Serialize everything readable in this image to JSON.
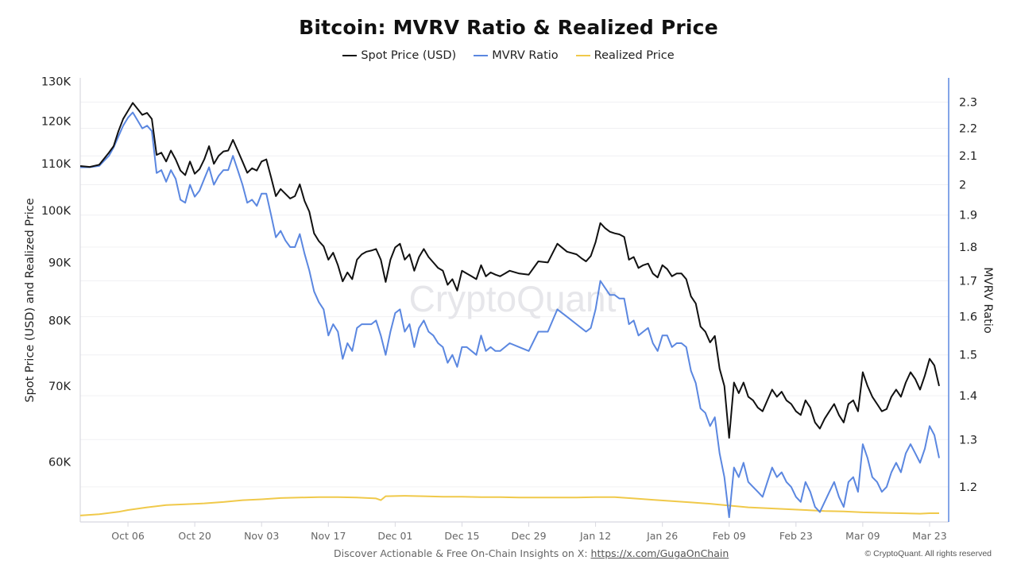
{
  "chart_data": {
    "type": "line",
    "title": "Bitcoin: MVRV Ratio & Realized Price",
    "legend_position": "top-center",
    "legend": [
      {
        "name": "Spot Price (USD)",
        "color": "#111111"
      },
      {
        "name": "MVRV Ratio",
        "color": "#5b87e0"
      },
      {
        "name": "Realized Price",
        "color": "#f0c94a"
      }
    ],
    "ylabel_left": "Spot Price (USD) and Realized Price",
    "ylabel_right": "MVRV Ratio",
    "y_left_scale": "log",
    "y_left_range": [
      53100,
      131000
    ],
    "y_left_ticks": [
      {
        "value": 60000,
        "label": "60K"
      },
      {
        "value": 70000,
        "label": "70K"
      },
      {
        "value": 80000,
        "label": "80K"
      },
      {
        "value": 90000,
        "label": "90K"
      },
      {
        "value": 100000,
        "label": "100K"
      },
      {
        "value": 110000,
        "label": "110K"
      },
      {
        "value": 120000,
        "label": "120K"
      },
      {
        "value": 130000,
        "label": "130K"
      }
    ],
    "y_right_scale": "log",
    "y_right_range": [
      1.131,
      2.396
    ],
    "y_right_ticks": [
      {
        "value": 1.2,
        "label": "1.2"
      },
      {
        "value": 1.3,
        "label": "1.3"
      },
      {
        "value": 1.4,
        "label": "1.4"
      },
      {
        "value": 1.5,
        "label": "1.5"
      },
      {
        "value": 1.6,
        "label": "1.6"
      },
      {
        "value": 1.7,
        "label": "1.7"
      },
      {
        "value": 1.8,
        "label": "1.8"
      },
      {
        "value": 1.9,
        "label": "1.9"
      },
      {
        "value": 2.0,
        "label": "2"
      },
      {
        "value": 2.1,
        "label": "2.1"
      },
      {
        "value": 2.2,
        "label": "2.2"
      },
      {
        "value": 2.3,
        "label": "2.3"
      }
    ],
    "x_range_days": [
      -10,
      172
    ],
    "x_ticks": [
      {
        "day": 0,
        "label": "Oct 06"
      },
      {
        "day": 14,
        "label": "Oct 20"
      },
      {
        "day": 28,
        "label": "Nov 03"
      },
      {
        "day": 42,
        "label": "Nov 17"
      },
      {
        "day": 56,
        "label": "Dec 01"
      },
      {
        "day": 70,
        "label": "Dec 15"
      },
      {
        "day": 84,
        "label": "Dec 29"
      },
      {
        "day": 98,
        "label": "Jan 12"
      },
      {
        "day": 112,
        "label": "Jan 26"
      },
      {
        "day": 126,
        "label": "Feb 09"
      },
      {
        "day": 140,
        "label": "Feb 23"
      },
      {
        "day": 154,
        "label": "Mar 09"
      },
      {
        "day": 168,
        "label": "Mar 23"
      }
    ],
    "x_day_offset_note": "day 0 = Oct 06",
    "grid": true,
    "series": [
      {
        "name": "Spot Price (USD)",
        "x_days": [
          -10,
          -8,
          -6,
          -4,
          -3,
          -2,
          -1,
          0,
          1,
          2,
          3,
          4,
          5,
          6,
          7,
          8,
          9,
          10,
          11,
          12,
          13,
          14,
          15,
          16,
          17,
          18,
          19,
          20,
          21,
          22,
          23,
          24,
          25,
          26,
          27,
          28,
          29,
          30,
          31,
          32,
          33,
          34,
          35,
          36,
          37,
          38,
          39,
          40,
          41,
          42,
          43,
          44,
          45,
          46,
          47,
          48,
          49,
          50,
          51,
          52,
          53,
          54,
          55,
          56,
          57,
          58,
          59,
          60,
          61,
          62,
          63,
          64,
          65,
          66,
          67,
          68,
          69,
          70,
          71,
          72,
          73,
          74,
          75,
          76,
          77,
          78,
          80,
          82,
          84,
          86,
          88,
          90,
          92,
          94,
          95,
          96,
          97,
          98,
          99,
          100,
          101,
          102,
          103,
          104,
          105,
          106,
          107,
          108,
          109,
          110,
          111,
          112,
          113,
          114,
          115,
          116,
          117,
          118,
          119,
          120,
          121,
          122,
          123,
          124,
          125,
          126,
          127,
          128,
          129,
          130,
          131,
          132,
          133,
          134,
          135,
          136,
          137,
          138,
          139,
          140,
          141,
          142,
          143,
          144,
          145,
          146,
          147,
          148,
          149,
          150,
          151,
          152,
          153,
          154,
          155,
          156,
          157,
          158,
          159,
          160,
          161,
          162,
          163,
          164,
          165,
          166,
          167,
          168,
          169,
          170
        ],
        "values": [
          109500,
          109300,
          109800,
          112500,
          114000,
          117500,
          120500,
          122500,
          124500,
          123000,
          121500,
          122000,
          120500,
          112000,
          112500,
          110500,
          113000,
          111000,
          108500,
          107500,
          110500,
          107800,
          108800,
          111000,
          114000,
          110000,
          111800,
          112800,
          113000,
          115500,
          113000,
          110500,
          108000,
          109000,
          108500,
          110500,
          111000,
          107000,
          103000,
          104500,
          103500,
          102500,
          103000,
          105500,
          102000,
          99800,
          95500,
          94000,
          93000,
          90500,
          91800,
          89500,
          86600,
          88200,
          87000,
          90500,
          91500,
          92000,
          92200,
          92500,
          90500,
          86500,
          90500,
          92800,
          93500,
          90500,
          91500,
          88500,
          91000,
          92500,
          91000,
          90000,
          89000,
          88500,
          86000,
          87000,
          85000,
          88500,
          88000,
          87500,
          87000,
          89500,
          87500,
          88200,
          87800,
          87500,
          88500,
          88000,
          87800,
          90200,
          90000,
          93500,
          92000,
          91500,
          90800,
          90200,
          91200,
          93800,
          97500,
          96500,
          95800,
          95500,
          95300,
          94800,
          90500,
          91000,
          89000,
          89500,
          89800,
          88000,
          87300,
          89500,
          88800,
          87500,
          88000,
          88000,
          87000,
          84000,
          82800,
          79000,
          78200,
          76500,
          77500,
          72500,
          70000,
          63000,
          70500,
          69000,
          70500,
          68500,
          68000,
          67000,
          66500,
          68000,
          69500,
          68500,
          69200,
          68000,
          67500,
          66500,
          66000,
          68000,
          67000,
          65000,
          64200,
          65500,
          66500,
          67500,
          66000,
          65000,
          67500,
          68000,
          66500,
          72000,
          70000,
          68500,
          67500,
          66500,
          66800,
          68500,
          69500,
          68500,
          70500,
          72000,
          71000,
          69500,
          71500,
          74000,
          73000,
          70000,
          69500,
          68500,
          67000,
          71500,
          70500
        ]
      },
      {
        "name": "MVRV Ratio",
        "x_days": [
          -10,
          -8,
          -6,
          -4,
          -3,
          -2,
          -1,
          0,
          1,
          2,
          3,
          4,
          5,
          6,
          7,
          8,
          9,
          10,
          11,
          12,
          13,
          14,
          15,
          16,
          17,
          18,
          19,
          20,
          21,
          22,
          23,
          24,
          25,
          26,
          27,
          28,
          29,
          30,
          31,
          32,
          33,
          34,
          35,
          36,
          37,
          38,
          39,
          40,
          41,
          42,
          43,
          44,
          45,
          46,
          47,
          48,
          49,
          50,
          51,
          52,
          53,
          54,
          55,
          56,
          57,
          58,
          59,
          60,
          61,
          62,
          63,
          64,
          65,
          66,
          67,
          68,
          69,
          70,
          71,
          72,
          73,
          74,
          75,
          76,
          77,
          78,
          80,
          82,
          84,
          86,
          88,
          90,
          92,
          94,
          95,
          96,
          97,
          98,
          99,
          100,
          101,
          102,
          103,
          104,
          105,
          106,
          107,
          108,
          109,
          110,
          111,
          112,
          113,
          114,
          115,
          116,
          117,
          118,
          119,
          120,
          121,
          122,
          123,
          124,
          125,
          126,
          127,
          128,
          129,
          130,
          131,
          132,
          133,
          134,
          135,
          136,
          137,
          138,
          139,
          140,
          141,
          142,
          143,
          144,
          145,
          146,
          147,
          148,
          149,
          150,
          151,
          152,
          153,
          154,
          155,
          156,
          157,
          158,
          159,
          160,
          161,
          162,
          163,
          164,
          165,
          166,
          167,
          168,
          169,
          170
        ],
        "values": [
          2.06,
          2.06,
          2.065,
          2.1,
          2.13,
          2.17,
          2.21,
          2.24,
          2.26,
          2.23,
          2.2,
          2.21,
          2.19,
          2.04,
          2.05,
          2.01,
          2.05,
          2.02,
          1.95,
          1.94,
          2.0,
          1.96,
          1.98,
          2.02,
          2.06,
          2.0,
          2.03,
          2.05,
          2.05,
          2.1,
          2.05,
          2.0,
          1.94,
          1.95,
          1.93,
          1.97,
          1.97,
          1.9,
          1.83,
          1.85,
          1.82,
          1.8,
          1.8,
          1.84,
          1.78,
          1.73,
          1.67,
          1.64,
          1.62,
          1.55,
          1.58,
          1.56,
          1.49,
          1.53,
          1.51,
          1.57,
          1.58,
          1.58,
          1.58,
          1.59,
          1.55,
          1.5,
          1.56,
          1.61,
          1.62,
          1.56,
          1.58,
          1.52,
          1.57,
          1.59,
          1.56,
          1.55,
          1.53,
          1.52,
          1.48,
          1.5,
          1.47,
          1.52,
          1.52,
          1.51,
          1.5,
          1.55,
          1.51,
          1.52,
          1.51,
          1.51,
          1.53,
          1.52,
          1.51,
          1.56,
          1.56,
          1.62,
          1.6,
          1.58,
          1.57,
          1.56,
          1.57,
          1.62,
          1.7,
          1.68,
          1.66,
          1.66,
          1.65,
          1.65,
          1.58,
          1.59,
          1.55,
          1.56,
          1.57,
          1.53,
          1.51,
          1.55,
          1.55,
          1.52,
          1.53,
          1.53,
          1.52,
          1.46,
          1.43,
          1.37,
          1.36,
          1.33,
          1.35,
          1.27,
          1.22,
          1.14,
          1.24,
          1.22,
          1.25,
          1.21,
          1.2,
          1.19,
          1.18,
          1.21,
          1.24,
          1.22,
          1.23,
          1.21,
          1.2,
          1.18,
          1.17,
          1.21,
          1.19,
          1.16,
          1.15,
          1.17,
          1.19,
          1.21,
          1.18,
          1.16,
          1.21,
          1.22,
          1.19,
          1.29,
          1.26,
          1.22,
          1.21,
          1.19,
          1.2,
          1.23,
          1.25,
          1.23,
          1.27,
          1.29,
          1.27,
          1.25,
          1.28,
          1.33,
          1.31,
          1.26,
          1.26,
          1.24,
          1.21,
          1.29,
          1.28
        ]
      },
      {
        "name": "Realized Price",
        "x_days": [
          -10,
          -6,
          -2,
          0,
          4,
          8,
          12,
          16,
          20,
          24,
          28,
          32,
          36,
          40,
          44,
          48,
          52,
          53,
          54,
          58,
          62,
          66,
          70,
          74,
          78,
          82,
          86,
          90,
          94,
          98,
          102,
          106,
          110,
          114,
          118,
          122,
          126,
          130,
          134,
          138,
          142,
          146,
          150,
          154,
          158,
          162,
          166,
          168,
          170
        ],
        "values": [
          53800,
          53950,
          54200,
          54400,
          54700,
          54950,
          55050,
          55150,
          55300,
          55500,
          55600,
          55750,
          55800,
          55850,
          55850,
          55800,
          55700,
          55500,
          55950,
          56000,
          55950,
          55900,
          55900,
          55850,
          55850,
          55800,
          55800,
          55800,
          55800,
          55850,
          55850,
          55700,
          55550,
          55400,
          55250,
          55100,
          54900,
          54700,
          54600,
          54500,
          54400,
          54300,
          54250,
          54150,
          54100,
          54050,
          54000,
          54050,
          54050
        ]
      }
    ],
    "watermark": "CryptoQuant"
  },
  "footer": {
    "text": "Discover Actionable & Free On-Chain Insights on X: ",
    "link": "https://x.com/GugaOnChain",
    "copyright": "© CryptoQuant. All rights reserved"
  }
}
